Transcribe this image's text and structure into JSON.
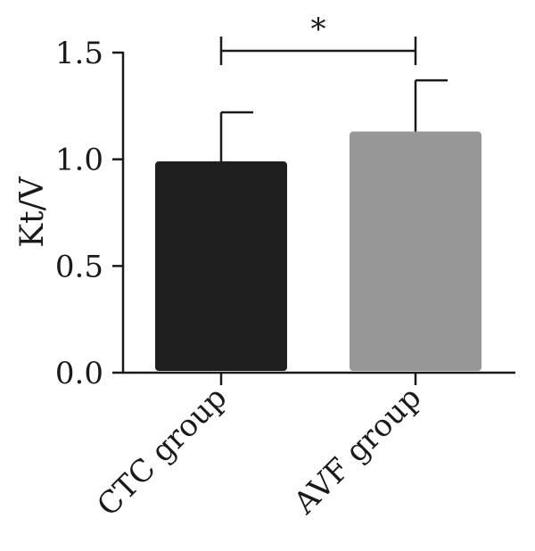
{
  "chart_data": {
    "type": "bar",
    "title": "",
    "xlabel": "",
    "ylabel": "Kt/V",
    "ylim": [
      0,
      1.5
    ],
    "yticks": [
      "0.0",
      "0.5",
      "1.0",
      "1.5"
    ],
    "categories": [
      "CTC group",
      "AVF group"
    ],
    "values": [
      0.99,
      1.13
    ],
    "error_upper": [
      1.22,
      1.37
    ],
    "colors": [
      "#1e1e1e",
      "#979797"
    ],
    "grid": false,
    "significance": {
      "between": [
        0,
        1
      ],
      "label": "*"
    }
  }
}
